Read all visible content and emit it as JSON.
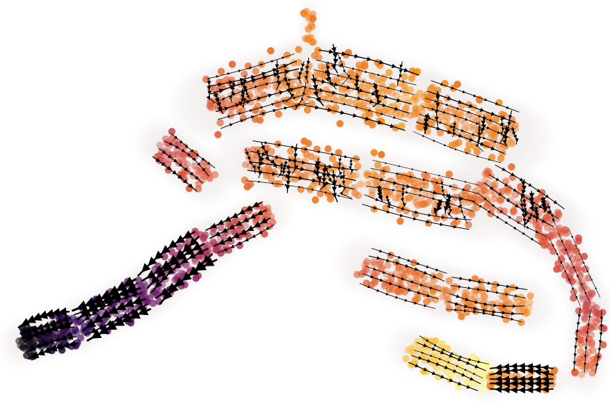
{
  "chart_data": {
    "type": "scatter",
    "subtype": "velocity-streamplot-embedding",
    "title": "",
    "xlabel": "",
    "ylabel": "",
    "axes_visible": false,
    "grid": false,
    "legend": "none",
    "colormap": "inferno",
    "colormap_stops": [
      "#000004",
      "#420a68",
      "#932667",
      "#dd513a",
      "#fca50a",
      "#fcffa4"
    ],
    "stream_color": "#000000",
    "arrowhead_count_estimate": 110,
    "regions": [
      {
        "name": "tail-tip",
        "color_value": 0.02,
        "density": "dense"
      },
      {
        "name": "left-arm",
        "color_value": 0.25,
        "density": "medium"
      },
      {
        "name": "left-lobe",
        "color_value": 0.55,
        "density": "dense"
      },
      {
        "name": "upper-body",
        "color_value": 0.72,
        "density": "dense"
      },
      {
        "name": "right-loop",
        "color_value": 0.78,
        "density": "medium"
      },
      {
        "name": "bottom-terminal",
        "color_value": 0.98,
        "density": "dense"
      }
    ]
  }
}
